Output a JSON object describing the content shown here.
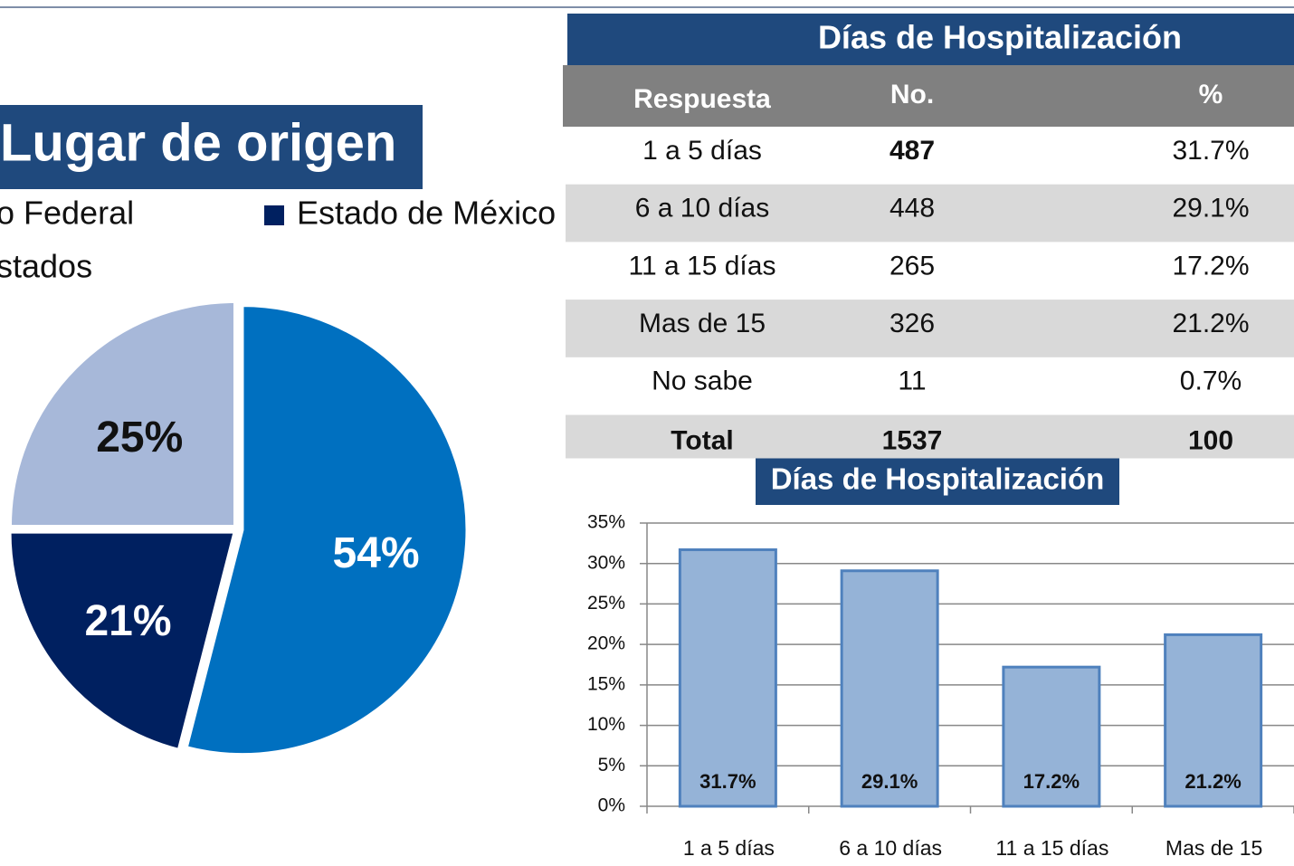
{
  "chart_data": [
    {
      "type": "pie",
      "title": "Lugar de origen",
      "series": [
        {
          "name": "o Federal",
          "color": "#0070c0"
        },
        {
          "name": "Estado de México",
          "color": "#002060"
        },
        {
          "name": "stados",
          "color": "#a7b8d9"
        }
      ],
      "values": [
        54,
        21,
        25
      ],
      "value_labels": [
        "54%",
        "21%",
        "25%"
      ]
    },
    {
      "type": "bar",
      "title": "Días de Hospitalización",
      "categories": [
        "1 a 5 días",
        "6 a 10 días",
        "11 a 15 días",
        "Mas de 15"
      ],
      "values": [
        31.7,
        29.1,
        17.2,
        21.2
      ],
      "value_labels": [
        "31.7%",
        "29.1%",
        "17.2%",
        "21.2%"
      ],
      "color": "#95b3d7",
      "ylim": [
        0,
        35
      ],
      "yticks": [
        {
          "value": 0,
          "label": "0%"
        },
        {
          "value": 5,
          "label": "5%"
        },
        {
          "value": 10,
          "label": "10%"
        },
        {
          "value": 15,
          "label": "15%"
        },
        {
          "value": 20,
          "label": "20%"
        },
        {
          "value": 25,
          "label": "25%"
        },
        {
          "value": 30,
          "label": "30%"
        },
        {
          "value": 35,
          "label": "35%"
        }
      ],
      "grid": true
    }
  ],
  "table": {
    "title": "Días de Hospitalización",
    "header": [
      "Respuesta",
      "No.",
      "%"
    ],
    "rows": [
      [
        "1 a 5 días",
        "487",
        "31.7%"
      ],
      [
        "6 a 10 días",
        "448",
        "29.1%"
      ],
      [
        "11 a 15 días",
        "265",
        "17.2%"
      ],
      [
        "Mas de 15",
        "326",
        "21.2%"
      ],
      [
        "No sabe",
        "11",
        "0.7%"
      ],
      [
        "Total",
        "1537",
        "100"
      ]
    ]
  }
}
